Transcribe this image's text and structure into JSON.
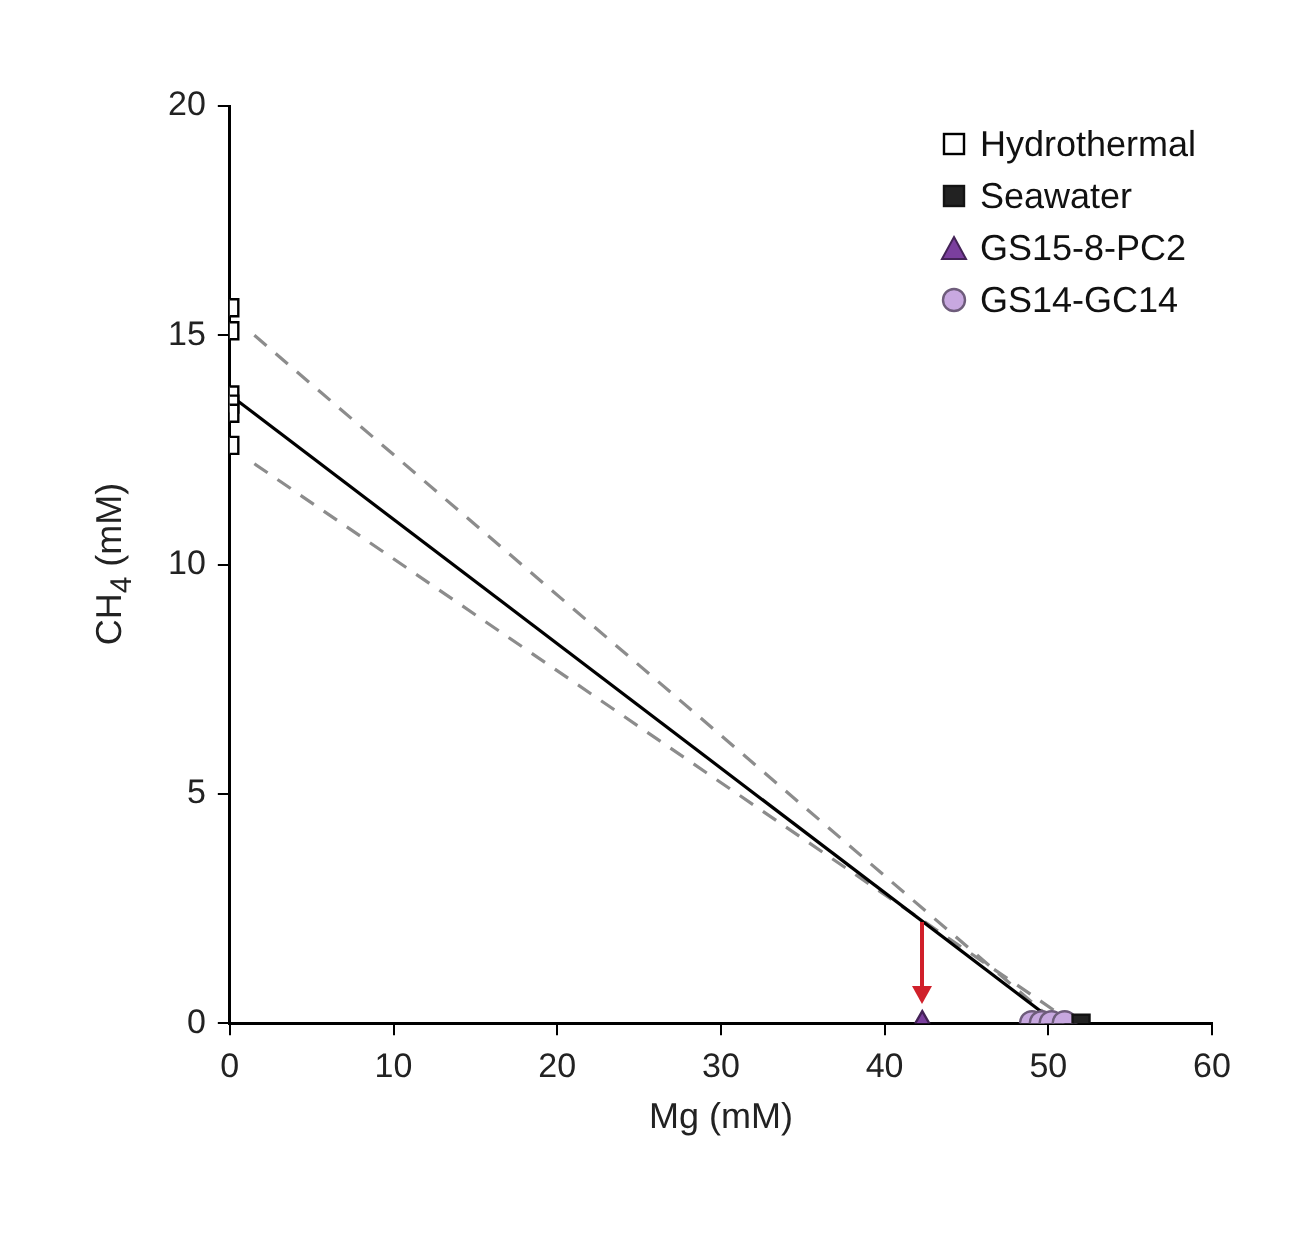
{
  "chart_data": {
    "type": "scatter",
    "xlabel": "Mg (mM)",
    "ylabel": "CH$_{4}$ (mM)",
    "xlim": [
      0,
      60
    ],
    "xticks": [
      0,
      10,
      20,
      30,
      40,
      50,
      60
    ],
    "ylim": [
      0,
      20
    ],
    "yticks": [
      0,
      5,
      10,
      15,
      20
    ],
    "grid": false,
    "legend": "top right",
    "series": [
      {
        "type": "line",
        "color": "#000000",
        "x": [
          0,
          50.5
        ],
        "values": [
          13.7,
          0
        ],
        "marker": "none",
        "line_style": "solid"
      },
      {
        "type": "line",
        "color": "#8c8c8c",
        "x": [
          1.5,
          50.5
        ],
        "values": [
          15.0,
          0
        ],
        "marker": "none",
        "line_style": "dashed"
      },
      {
        "type": "line",
        "color": "#8c8c8c",
        "x": [
          1.5,
          51.5
        ],
        "values": [
          12.2,
          0
        ],
        "marker": "none",
        "line_style": "dashed"
      },
      {
        "name": "Hydrothermal",
        "color": "#ffffff",
        "marker": "square",
        "x": [
          0,
          0,
          0,
          0,
          0,
          0
        ],
        "values": [
          15.6,
          15.1,
          13.7,
          13.5,
          13.3,
          12.6
        ]
      },
      {
        "name": "Seawater",
        "color": "#222222",
        "marker": "square",
        "x": [
          52
        ],
        "values": [
          0
        ]
      },
      {
        "name": "GS15-8-PC2",
        "color": "#7b3f9e",
        "marker": "triangle",
        "x": [
          42.3
        ],
        "values": [
          0
        ]
      },
      {
        "name": "GS14-GC14",
        "color": "#c8a8e0",
        "marker": "circle",
        "x": [
          49,
          49.6,
          50.2,
          51
        ],
        "values": [
          0,
          0,
          0,
          0
        ]
      }
    ]
  }
}
